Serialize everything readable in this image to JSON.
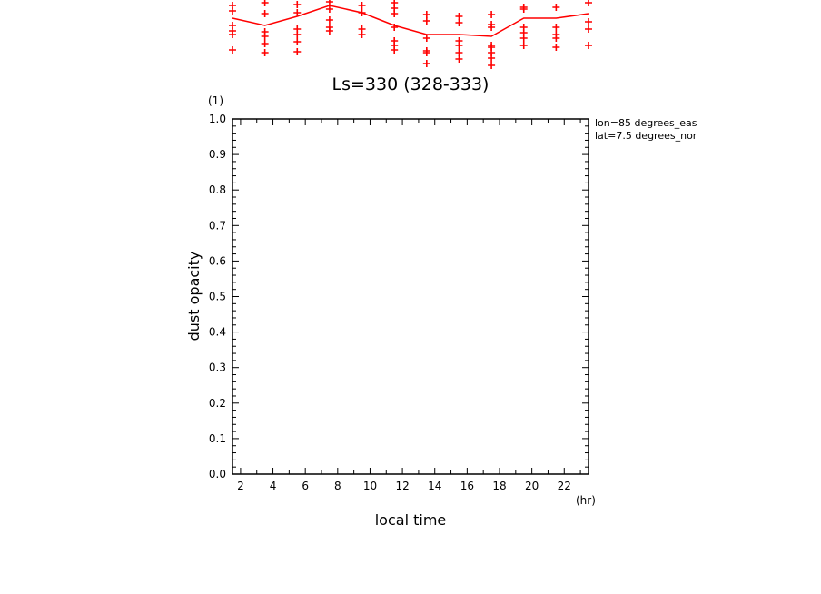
{
  "chart_data": {
    "type": "scatter",
    "title": "Ls=330 (328-333)",
    "xlabel": "local time",
    "xunit": "(hr)",
    "ylabel": "dust opacity",
    "yunit": "(1)",
    "annotations": [
      "lon=85 degrees_eas",
      "lat=7.5 degrees_nor"
    ],
    "xlim": [
      1.5,
      23.5
    ],
    "ylim": [
      0.0,
      1.0
    ],
    "x_ticks": [
      2,
      4,
      6,
      8,
      10,
      12,
      14,
      16,
      18,
      20,
      22
    ],
    "y_ticks": [
      0.0,
      0.1,
      0.2,
      0.3,
      0.4,
      0.5,
      0.6,
      0.7,
      0.8,
      0.9,
      1.0
    ],
    "grid": false,
    "series": []
  },
  "top_partial": {
    "line_color": "#ff0000",
    "marker": "+",
    "line_x": [
      1.5,
      3.5,
      5.5,
      7.5,
      9.5,
      11.5,
      13.5,
      15.5,
      17.5,
      19.5,
      21.5,
      23.5
    ],
    "line_y": [
      20,
      28,
      18,
      6,
      14,
      28,
      38,
      38,
      40,
      20,
      20,
      15
    ],
    "cols": [
      {
        "x": 1.5,
        "y": [
          6,
          12,
          28,
          34,
          38,
          55
        ]
      },
      {
        "x": 3.5,
        "y": [
          3,
          15,
          35,
          40,
          48,
          58
        ]
      },
      {
        "x": 5.5,
        "y": [
          5,
          14,
          32,
          38,
          46,
          57
        ]
      },
      {
        "x": 7.5,
        "y": [
          2,
          10,
          22,
          30,
          34
        ]
      },
      {
        "x": 9.5,
        "y": [
          6,
          14,
          32,
          38
        ]
      },
      {
        "x": 11.5,
        "y": [
          3,
          9,
          15,
          30,
          45,
          50,
          55
        ]
      },
      {
        "x": 13.5,
        "y": [
          16,
          23,
          42,
          56,
          58,
          70
        ]
      },
      {
        "x": 15.5,
        "y": [
          18,
          25,
          45,
          50,
          58,
          65
        ]
      },
      {
        "x": 17.5,
        "y": [
          16,
          27,
          30,
          50,
          52,
          58,
          64,
          72
        ]
      },
      {
        "x": 19.5,
        "y": [
          8,
          10,
          30,
          36,
          42,
          50
        ]
      },
      {
        "x": 21.5,
        "y": [
          8,
          30,
          38,
          42,
          52
        ]
      },
      {
        "x": 23.5,
        "y": [
          3,
          24,
          32,
          50
        ]
      }
    ]
  }
}
